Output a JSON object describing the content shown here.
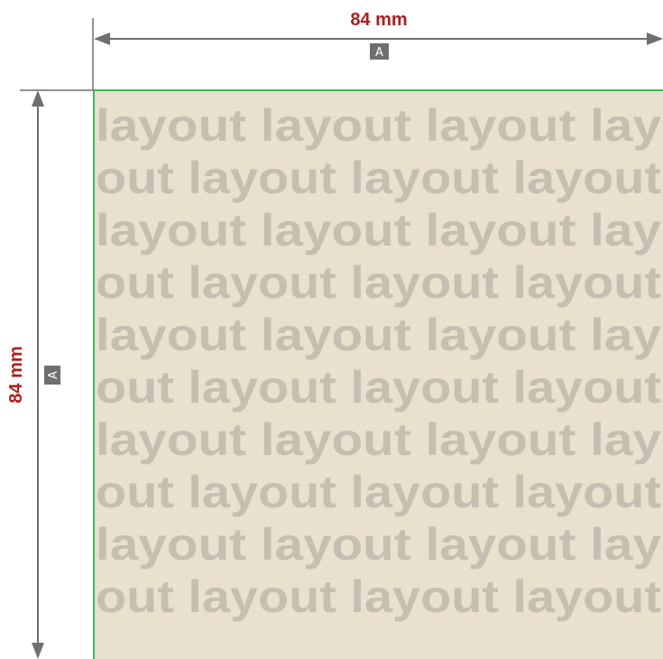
{
  "dimensions": {
    "width": {
      "value_label": "84 mm",
      "badge": "A"
    },
    "height": {
      "value_label": "84 mm",
      "badge": "A"
    }
  },
  "layout_area": {
    "pattern_rows": [
      "layout layout layout lay",
      "out layout layout layout",
      "layout layout layout lay",
      "out layout layout layout",
      "layout layout layout lay",
      "out layout layout layout",
      "layout layout layout lay",
      "out layout layout layout",
      "layout layout layout lay",
      "out layout layout layout"
    ]
  },
  "colors": {
    "label": "#b01e1e",
    "dimension_line": "#6f6f6f",
    "badge_bg": "#6f6f6f",
    "badge_text": "#ffffff",
    "area_fill": "#e9e0ce",
    "pattern_text": "#c5bfb2",
    "trim_line": "#3cba58"
  }
}
